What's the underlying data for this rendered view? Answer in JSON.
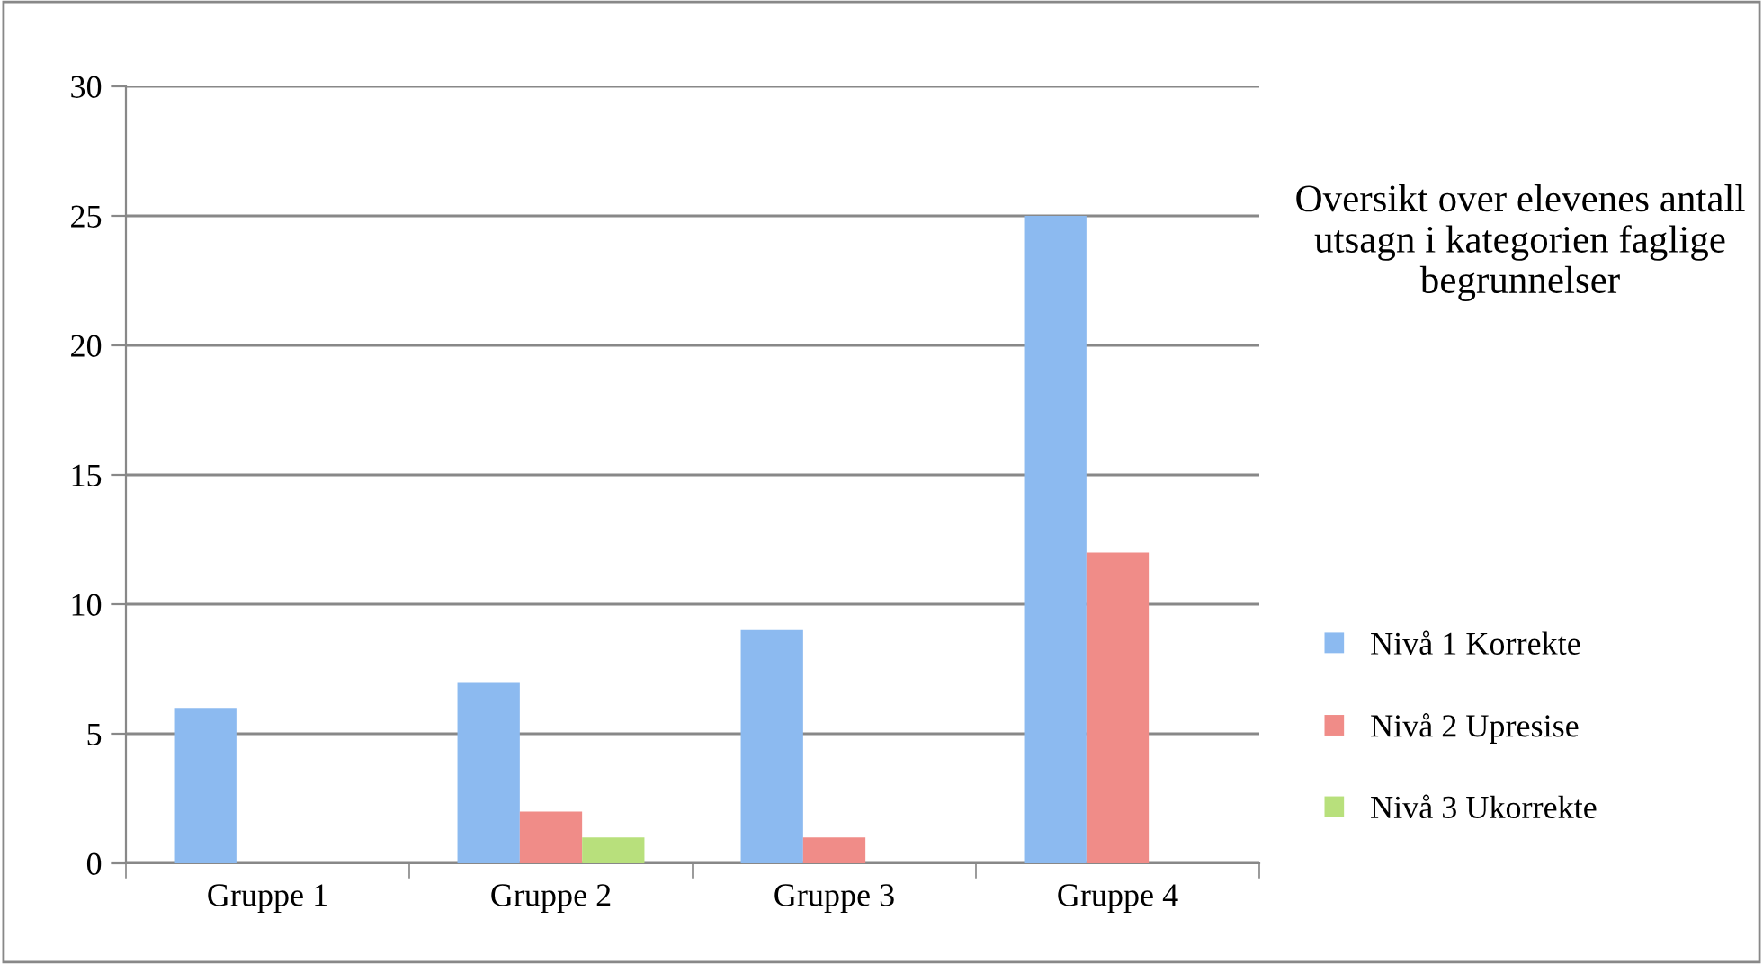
{
  "chart_data": {
    "type": "bar",
    "title": "Oversikt over elevenes antall utsagn i kategorien faglige begrunnelser",
    "categories": [
      "Gruppe 1",
      "Gruppe 2",
      "Gruppe 3",
      "Gruppe 4"
    ],
    "series": [
      {
        "name": "Nivå 1 Korrekte",
        "color": "#8cbaf0",
        "values": [
          6,
          7,
          9,
          25
        ]
      },
      {
        "name": "Nivå 2 Upresise",
        "color": "#f08c88",
        "values": [
          0,
          2,
          1,
          12
        ]
      },
      {
        "name": "Nivå 3 Ukorrekte",
        "color": "#b8e07c",
        "values": [
          0,
          1,
          0,
          0
        ]
      }
    ],
    "ylim": [
      0,
      30
    ],
    "yticks": [
      0,
      5,
      10,
      15,
      20,
      25,
      30
    ],
    "grid": "y",
    "legend": "right"
  }
}
